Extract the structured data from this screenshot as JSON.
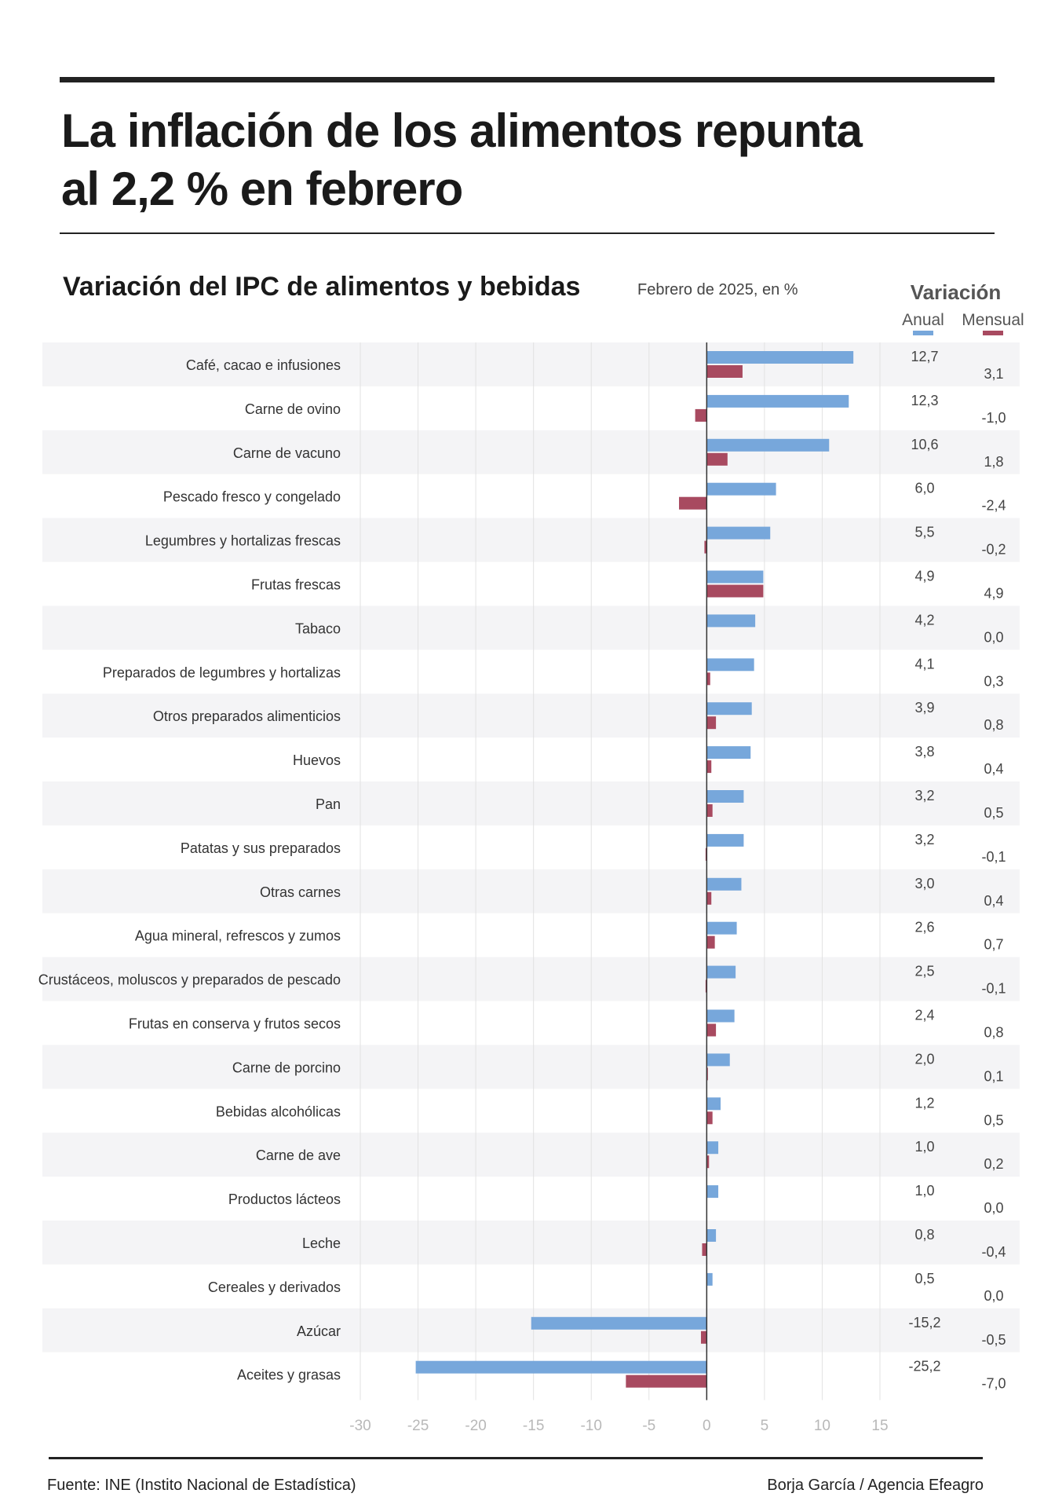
{
  "header": {
    "title_line1": "La inflación de los alimentos repunta",
    "title_line2": "al 2,2 % en febrero"
  },
  "chart_data": {
    "type": "bar",
    "orientation": "horizontal",
    "title": "Variación del IPC de alimentos y bebidas",
    "subtitle": "Febrero de 2025, en %",
    "legend_title": "Variación",
    "xlim": [
      -30,
      15
    ],
    "xticks": [
      -30,
      -25,
      -20,
      -15,
      -10,
      -5,
      0,
      5,
      10,
      15
    ],
    "tick_labels": [
      "-30",
      "-25",
      "-20",
      "-15",
      "-10",
      "-5",
      "0",
      "5",
      "10",
      "15"
    ],
    "grid": true,
    "categories": [
      "Café, cacao e infusiones",
      "Carne de ovino",
      "Carne de vacuno",
      "Pescado fresco y congelado",
      "Legumbres y hortalizas frescas",
      "Frutas frescas",
      "Tabaco",
      "Preparados de legumbres y hortalizas",
      "Otros preparados alimenticios",
      "Huevos",
      "Pan",
      "Patatas y sus preparados",
      "Otras carnes",
      "Agua mineral, refrescos y zumos",
      "Crustáceos, moluscos y preparados de pescado",
      "Frutas en conserva y frutos secos",
      "Carne de porcino",
      "Bebidas alcohólicas",
      "Carne de ave",
      "Productos lácteos",
      "Leche",
      "Cereales y derivados",
      "Azúcar",
      "Aceites y grasas"
    ],
    "series": [
      {
        "name": "Anual",
        "color": "#77a7db",
        "values": [
          12.7,
          12.3,
          10.6,
          6.0,
          5.5,
          4.9,
          4.2,
          4.1,
          3.9,
          3.8,
          3.2,
          3.2,
          3.0,
          2.6,
          2.5,
          2.4,
          2.0,
          1.2,
          1.0,
          1.0,
          0.8,
          0.5,
          -15.2,
          -25.2
        ],
        "labels": [
          "12,7",
          "12,3",
          "10,6",
          "6,0",
          "5,5",
          "4,9",
          "4,2",
          "4,1",
          "3,9",
          "3,8",
          "3,2",
          "3,2",
          "3,0",
          "2,6",
          "2,5",
          "2,4",
          "2,0",
          "1,2",
          "1,0",
          "1,0",
          "0,8",
          "0,5",
          "-15,2",
          "-25,2"
        ]
      },
      {
        "name": "Mensual",
        "color": "#a84a60",
        "values": [
          3.1,
          -1.0,
          1.8,
          -2.4,
          -0.2,
          4.9,
          0.0,
          0.3,
          0.8,
          0.4,
          0.5,
          -0.1,
          0.4,
          0.7,
          -0.1,
          0.8,
          0.1,
          0.5,
          0.2,
          0.0,
          -0.4,
          0.0,
          -0.5,
          -7.0
        ],
        "labels": [
          "3,1",
          "-1,0",
          "1,8",
          "-2,4",
          "-0,2",
          "4,9",
          "0,0",
          "0,3",
          "0,8",
          "0,4",
          "0,5",
          "-0,1",
          "0,4",
          "0,7",
          "-0,1",
          "0,8",
          "0,1",
          "0,5",
          "0,2",
          "0,0",
          "-0,4",
          "0,0",
          "-0,5",
          "-7,0"
        ]
      }
    ]
  },
  "footer": {
    "source": "Fuente: INE (Instito Nacional de Estadística)",
    "credit": "Borja García / Agencia Efeagro"
  }
}
